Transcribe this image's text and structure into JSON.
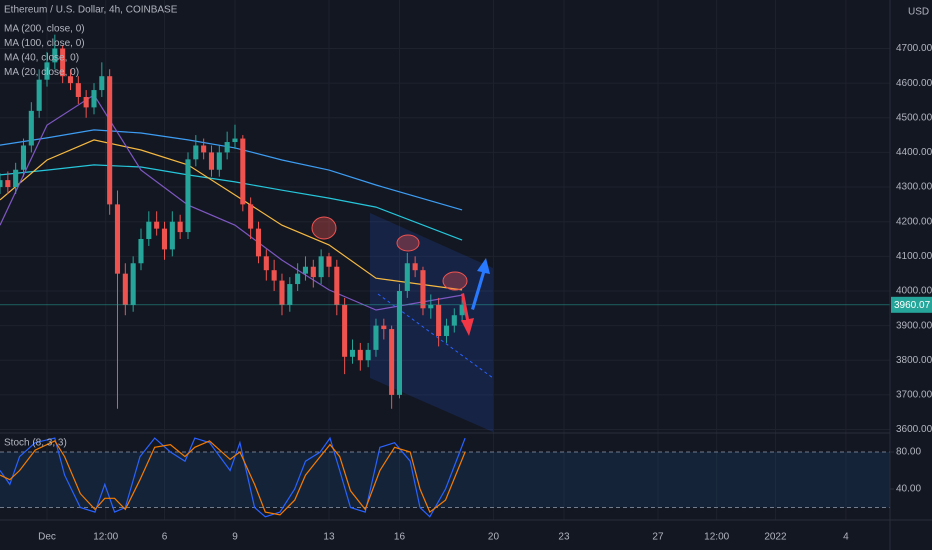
{
  "chart_data": [
    {
      "type": "candlestick",
      "title": "Ethereum / U.S. Dollar, 4h, COINBASE",
      "y_unit": "USD",
      "x": [
        -48,
        -40,
        -32,
        -24,
        -16,
        -8,
        0,
        8,
        16,
        24,
        32,
        40,
        48,
        56,
        64,
        72,
        80,
        88,
        96,
        104,
        112,
        120,
        128,
        136,
        144,
        152,
        160,
        168,
        176,
        184,
        192,
        200,
        208,
        216,
        224,
        232,
        240,
        248,
        256,
        264,
        272,
        280,
        288,
        296,
        304,
        312,
        320,
        328,
        336,
        344,
        352,
        360,
        368,
        376,
        384,
        392,
        400,
        408,
        416,
        424
      ],
      "open": [
        4300,
        4320,
        4300,
        4350,
        4420,
        4520,
        4610,
        4660,
        4700,
        4620,
        4600,
        4560,
        4530,
        4580,
        4620,
        4250,
        4050,
        3960,
        4080,
        4150,
        4200,
        4180,
        4120,
        4200,
        4170,
        4380,
        4420,
        4400,
        4350,
        4400,
        4430,
        4440,
        4250,
        4180,
        4100,
        4060,
        4030,
        3960,
        4020,
        4050,
        4070,
        4040,
        4100,
        4070,
        3960,
        3810,
        3830,
        3800,
        3830,
        3900,
        3890,
        3700,
        4000,
        4080,
        4060,
        3950,
        3960,
        3870,
        3900,
        3930
      ],
      "high": [
        4340,
        4345,
        4370,
        4440,
        4545,
        4640,
        4690,
        4740,
        4710,
        4640,
        4620,
        4580,
        4600,
        4660,
        4640,
        4290,
        4080,
        4100,
        4180,
        4230,
        4230,
        4200,
        4230,
        4220,
        4400,
        4450,
        4440,
        4420,
        4420,
        4460,
        4480,
        4450,
        4270,
        4200,
        4120,
        4090,
        4050,
        4040,
        4080,
        4100,
        4090,
        4120,
        4110,
        4090,
        3980,
        3860,
        3850,
        3850,
        3920,
        3920,
        3900,
        4020,
        4110,
        4100,
        4070,
        3990,
        3980,
        3920,
        3950,
        3980
      ],
      "low": [
        4280,
        4280,
        4280,
        4330,
        4400,
        4500,
        4590,
        4640,
        4600,
        4580,
        4540,
        4500,
        4510,
        4560,
        4220,
        3660,
        3930,
        3940,
        4060,
        4130,
        4160,
        4090,
        4100,
        4150,
        4150,
        4360,
        4380,
        4330,
        4330,
        4380,
        4410,
        4230,
        4150,
        4080,
        4030,
        4000,
        3930,
        3940,
        4000,
        4030,
        4010,
        4020,
        4040,
        3930,
        3760,
        3790,
        3770,
        3780,
        3810,
        3860,
        3660,
        3690,
        3980,
        4040,
        3930,
        3920,
        3840,
        3850,
        3880,
        3910
      ],
      "close": [
        4320,
        4300,
        4350,
        4420,
        4520,
        4610,
        4660,
        4700,
        4620,
        4600,
        4560,
        4530,
        4580,
        4620,
        4250,
        4050,
        3960,
        4080,
        4150,
        4200,
        4180,
        4120,
        4200,
        4170,
        4380,
        4420,
        4400,
        4350,
        4400,
        4430,
        4440,
        4250,
        4180,
        4100,
        4060,
        4030,
        3960,
        4020,
        4050,
        4070,
        4040,
        4100,
        4070,
        3960,
        3810,
        3830,
        3800,
        3830,
        3900,
        3890,
        3700,
        4000,
        4080,
        4060,
        3950,
        3960,
        3870,
        3900,
        3930,
        3960.07
      ],
      "up_color": "#26a69a",
      "down_color": "#ef5350",
      "last_price": 3960.07,
      "series": [
        {
          "name": "MA (200, close, 0)",
          "color": "#3d9df3",
          "x": [
            -48,
            0,
            48,
            96,
            144,
            192,
            240,
            288,
            336,
            424
          ],
          "values": [
            4421,
            4442,
            4465,
            4456,
            4436,
            4413,
            4378,
            4349,
            4306,
            4234
          ]
        },
        {
          "name": "MA (100, close, 0)",
          "color": "#26c6da",
          "x": [
            -48,
            0,
            48,
            96,
            144,
            192,
            240,
            288,
            336,
            424
          ],
          "values": [
            4335,
            4349,
            4364,
            4358,
            4335,
            4315,
            4291,
            4268,
            4242,
            4147
          ]
        },
        {
          "name": "MA (40, close, 0)",
          "color": "#f5b942",
          "x": [
            -48,
            0,
            48,
            96,
            144,
            192,
            240,
            288,
            336,
            424
          ],
          "values": [
            4263,
            4378,
            4436,
            4407,
            4364,
            4277,
            4190,
            4133,
            4037,
            4003
          ]
        },
        {
          "name": "MA (20, close, 0)",
          "color": "#7e57c2",
          "x": [
            -48,
            0,
            48,
            96,
            144,
            192,
            240,
            288,
            336,
            424
          ],
          "values": [
            4190,
            4479,
            4566,
            4349,
            4248,
            4190,
            4089,
            4003,
            3945,
            3988
          ]
        }
      ],
      "xlim": [
        -48,
        861
      ],
      "ylim": [
        3590,
        4840
      ],
      "xticks": [
        {
          "value": 0,
          "label": "Dec"
        },
        {
          "value": 60,
          "label": "12:00"
        },
        {
          "value": 120,
          "label": "6"
        },
        {
          "value": 192,
          "label": "9"
        },
        {
          "value": 288,
          "label": "13"
        },
        {
          "value": 360,
          "label": "16"
        },
        {
          "value": 456,
          "label": "20"
        },
        {
          "value": 528,
          "label": "23"
        },
        {
          "value": 624,
          "label": "27"
        },
        {
          "value": 684,
          "label": "12:00"
        },
        {
          "value": 744,
          "label": "2022"
        },
        {
          "value": 816,
          "label": "4"
        }
      ],
      "yticks": [
        {
          "value": 3600,
          "label": "3600.00"
        },
        {
          "value": 3700,
          "label": "3700.00"
        },
        {
          "value": 3800,
          "label": "3800.00"
        },
        {
          "value": 3900,
          "label": "3900.00"
        },
        {
          "value": 4000,
          "label": "4000.00"
        },
        {
          "value": 4100,
          "label": "4100.00"
        },
        {
          "value": 4200,
          "label": "4200.00"
        },
        {
          "value": 4300,
          "label": "4300.00"
        },
        {
          "value": 4400,
          "label": "4400.00"
        },
        {
          "value": 4500,
          "label": "4500.00"
        },
        {
          "value": 4600,
          "label": "4600.00"
        },
        {
          "value": 4700,
          "label": "4700.00"
        }
      ],
      "grid": true
    },
    {
      "type": "line",
      "title": "Stoch (8, 3, 3)",
      "x": [
        -48,
        -38,
        -28,
        -12,
        8,
        18,
        34,
        49,
        59,
        69,
        80,
        95,
        110,
        126,
        141,
        151,
        166,
        187,
        197,
        212,
        223,
        238,
        253,
        264,
        279,
        289,
        299,
        310,
        325,
        340,
        355,
        371,
        381,
        391,
        407,
        427
      ],
      "series": [
        {
          "color": "#2962ff",
          "values": [
            60,
            45,
            75,
            90,
            95,
            55,
            20,
            15,
            45,
            15,
            20,
            75,
            95,
            80,
            70,
            95,
            90,
            60,
            90,
            20,
            10,
            15,
            40,
            70,
            80,
            95,
            60,
            20,
            15,
            85,
            90,
            70,
            20,
            10,
            40,
            95
          ]
        },
        {
          "color": "#f57c00",
          "values": [
            55,
            50,
            60,
            82,
            92,
            75,
            35,
            18,
            30,
            30,
            18,
            50,
            85,
            88,
            75,
            85,
            92,
            72,
            80,
            45,
            15,
            12,
            28,
            55,
            75,
            88,
            75,
            38,
            18,
            60,
            85,
            80,
            40,
            15,
            28,
            80
          ]
        }
      ],
      "levels": [
        20,
        80
      ],
      "xlim": [
        -48,
        861
      ],
      "ylim": [
        6.5,
        100.5
      ],
      "yticks": [
        {
          "value": 80,
          "label": "80.00"
        },
        {
          "value": 40,
          "label": "40.00"
        }
      ]
    }
  ]
}
